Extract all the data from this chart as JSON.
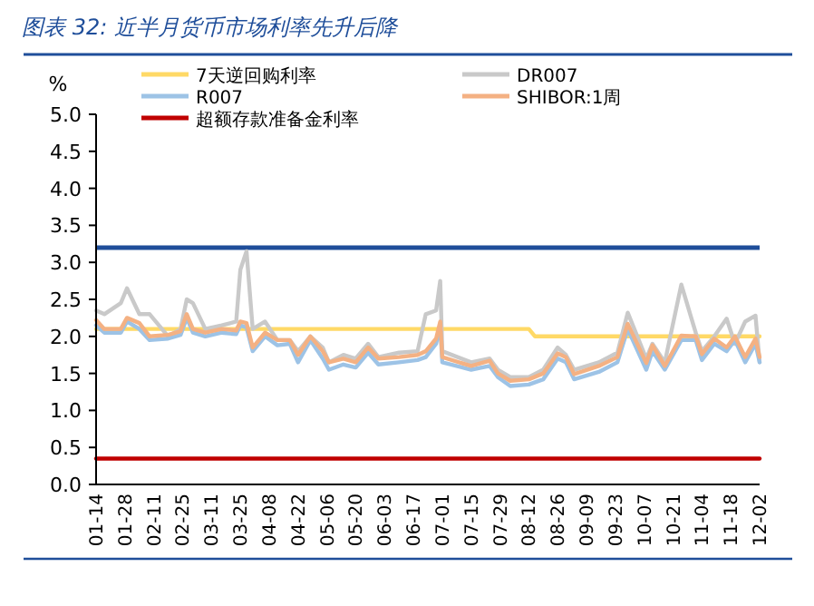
{
  "chart_data": {
    "type": "line",
    "title": "图表 32: 近半月货币市场利率先升后降",
    "ylabel": "%",
    "x": [
      "--01-14",
      "--01-18",
      "--01-26",
      "--01-29",
      "--02-04",
      "--02-09",
      "--02-18",
      "--02-24",
      "--02-27",
      "--03-02",
      "--03-08",
      "--03-16",
      "--03-23",
      "--03-25",
      "--03-28",
      "--03-31",
      "--04-06",
      "--04-12",
      "--04-18",
      "--04-22",
      "--04-28",
      "--05-04",
      "--05-07",
      "--05-14",
      "--05-20",
      "--05-26",
      "--05-31",
      "--06-10",
      "--06-19",
      "--06-23",
      "--06-28",
      "--06-30",
      "--07-01",
      "--07-15",
      "--07-24",
      "--07-28",
      "--08-03",
      "--08-12",
      "--08-19",
      "--08-26",
      "--08-30",
      "--09-03",
      "--09-15",
      "--09-24",
      "--09-29",
      "--10-08",
      "--10-11",
      "--10-17",
      "--10-25",
      "--11-01",
      "--11-04",
      "--11-10",
      "--11-16",
      "--11-20",
      "--11-25",
      "--11-30",
      "--12-02"
    ],
    "series": [
      {
        "name": "7天逆回购利率",
        "color": "#ffd966",
        "x": [
          "--01-14",
          "--08-12",
          "--08-15",
          "--12-02"
        ],
        "values": [
          2.1,
          2.1,
          2.0,
          2.0
        ]
      },
      {
        "name": "DR007",
        "color": "#c9c9c9",
        "values": [
          2.35,
          2.3,
          2.45,
          2.65,
          2.3,
          2.3,
          2.0,
          2.1,
          2.5,
          2.45,
          2.1,
          2.15,
          2.2,
          2.9,
          3.15,
          2.1,
          2.2,
          1.95,
          1.95,
          1.8,
          2.0,
          1.85,
          1.65,
          1.75,
          1.7,
          1.9,
          1.72,
          1.78,
          1.8,
          2.3,
          2.35,
          2.75,
          1.8,
          1.65,
          1.7,
          1.55,
          1.45,
          1.45,
          1.55,
          1.85,
          1.75,
          1.55,
          1.65,
          1.78,
          2.32,
          1.7,
          1.9,
          1.65,
          2.7,
          2.05,
          1.8,
          2.0,
          2.24,
          1.9,
          2.2,
          2.28,
          1.65
        ]
      },
      {
        "name": "R007",
        "color": "#9dc3e6",
        "values": [
          2.15,
          2.05,
          2.05,
          2.2,
          2.1,
          1.95,
          1.97,
          2.02,
          2.25,
          2.05,
          2.0,
          2.05,
          2.03,
          2.15,
          2.12,
          1.8,
          2.0,
          1.88,
          1.9,
          1.65,
          1.95,
          1.7,
          1.55,
          1.62,
          1.58,
          1.78,
          1.62,
          1.65,
          1.68,
          1.72,
          1.9,
          2.15,
          1.65,
          1.55,
          1.6,
          1.45,
          1.33,
          1.35,
          1.42,
          1.7,
          1.65,
          1.42,
          1.52,
          1.65,
          2.1,
          1.55,
          1.8,
          1.55,
          1.95,
          1.95,
          1.68,
          1.9,
          1.8,
          1.95,
          1.65,
          1.9,
          1.65
        ]
      },
      {
        "name": "SHIBOR:1周",
        "color": "#f4b183",
        "values": [
          2.22,
          2.1,
          2.1,
          2.25,
          2.18,
          2.0,
          2.02,
          2.07,
          2.3,
          2.1,
          2.05,
          2.1,
          2.08,
          2.2,
          2.18,
          1.85,
          2.05,
          1.95,
          1.95,
          1.75,
          2.0,
          1.8,
          1.65,
          1.7,
          1.65,
          1.85,
          1.7,
          1.72,
          1.75,
          1.8,
          1.97,
          2.2,
          1.72,
          1.6,
          1.67,
          1.5,
          1.4,
          1.42,
          1.5,
          1.77,
          1.72,
          1.49,
          1.6,
          1.72,
          2.17,
          1.64,
          1.88,
          1.6,
          2.01,
          2.0,
          1.76,
          1.97,
          1.85,
          2.0,
          1.72,
          1.97,
          1.72
        ]
      },
      {
        "name": "超额存款准备金利率",
        "color": "#c00000",
        "x": [
          "--01-14",
          "--12-02"
        ],
        "values": [
          0.35,
          0.35
        ]
      }
    ],
    "ref_lines": [
      {
        "axis": "y",
        "value": 3.2,
        "color": "#1f4e9a"
      }
    ],
    "xlim": [
      "--01-14",
      "--12-02"
    ],
    "xticks": [
      {
        "value": "--01-14",
        "label": "01-14"
      },
      {
        "value": "--01-28",
        "label": "01-28"
      },
      {
        "value": "--02-11",
        "label": "02-11"
      },
      {
        "value": "--02-25",
        "label": "02-25"
      },
      {
        "value": "--03-11",
        "label": "03-11"
      },
      {
        "value": "--03-25",
        "label": "03-25"
      },
      {
        "value": "--04-08",
        "label": "04-08"
      },
      {
        "value": "--04-22",
        "label": "04-22"
      },
      {
        "value": "--05-06",
        "label": "05-06"
      },
      {
        "value": "--05-20",
        "label": "05-20"
      },
      {
        "value": "--06-03",
        "label": "06-03"
      },
      {
        "value": "--06-17",
        "label": "06-17"
      },
      {
        "value": "--07-01",
        "label": "07-01"
      },
      {
        "value": "--07-15",
        "label": "07-15"
      },
      {
        "value": "--07-29",
        "label": "07-29"
      },
      {
        "value": "--08-12",
        "label": "08-12"
      },
      {
        "value": "--08-26",
        "label": "08-26"
      },
      {
        "value": "--09-09",
        "label": "09-09"
      },
      {
        "value": "--09-23",
        "label": "09-23"
      },
      {
        "value": "--10-07",
        "label": "10-07"
      },
      {
        "value": "--10-21",
        "label": "10-21"
      },
      {
        "value": "--11-04",
        "label": "11-04"
      },
      {
        "value": "--11-18",
        "label": "11-18"
      },
      {
        "value": "--12-02",
        "label": "12-02"
      }
    ],
    "ylim": [
      0,
      5
    ],
    "yticks": [
      {
        "value": 0,
        "label": "0.0"
      },
      {
        "value": 0.5,
        "label": "0.5"
      },
      {
        "value": 1,
        "label": "1.0"
      },
      {
        "value": 1.5,
        "label": "1.5"
      },
      {
        "value": 2,
        "label": "2.0"
      },
      {
        "value": 2.5,
        "label": "2.5"
      },
      {
        "value": 3,
        "label": "3.0"
      },
      {
        "value": 3.5,
        "label": "3.5"
      },
      {
        "value": 4,
        "label": "4.0"
      },
      {
        "value": 4.5,
        "label": "4.5"
      },
      {
        "value": 5,
        "label": "5.0"
      }
    ],
    "grid": false,
    "legend": "top",
    "marker": "none",
    "line_style": "solid"
  }
}
